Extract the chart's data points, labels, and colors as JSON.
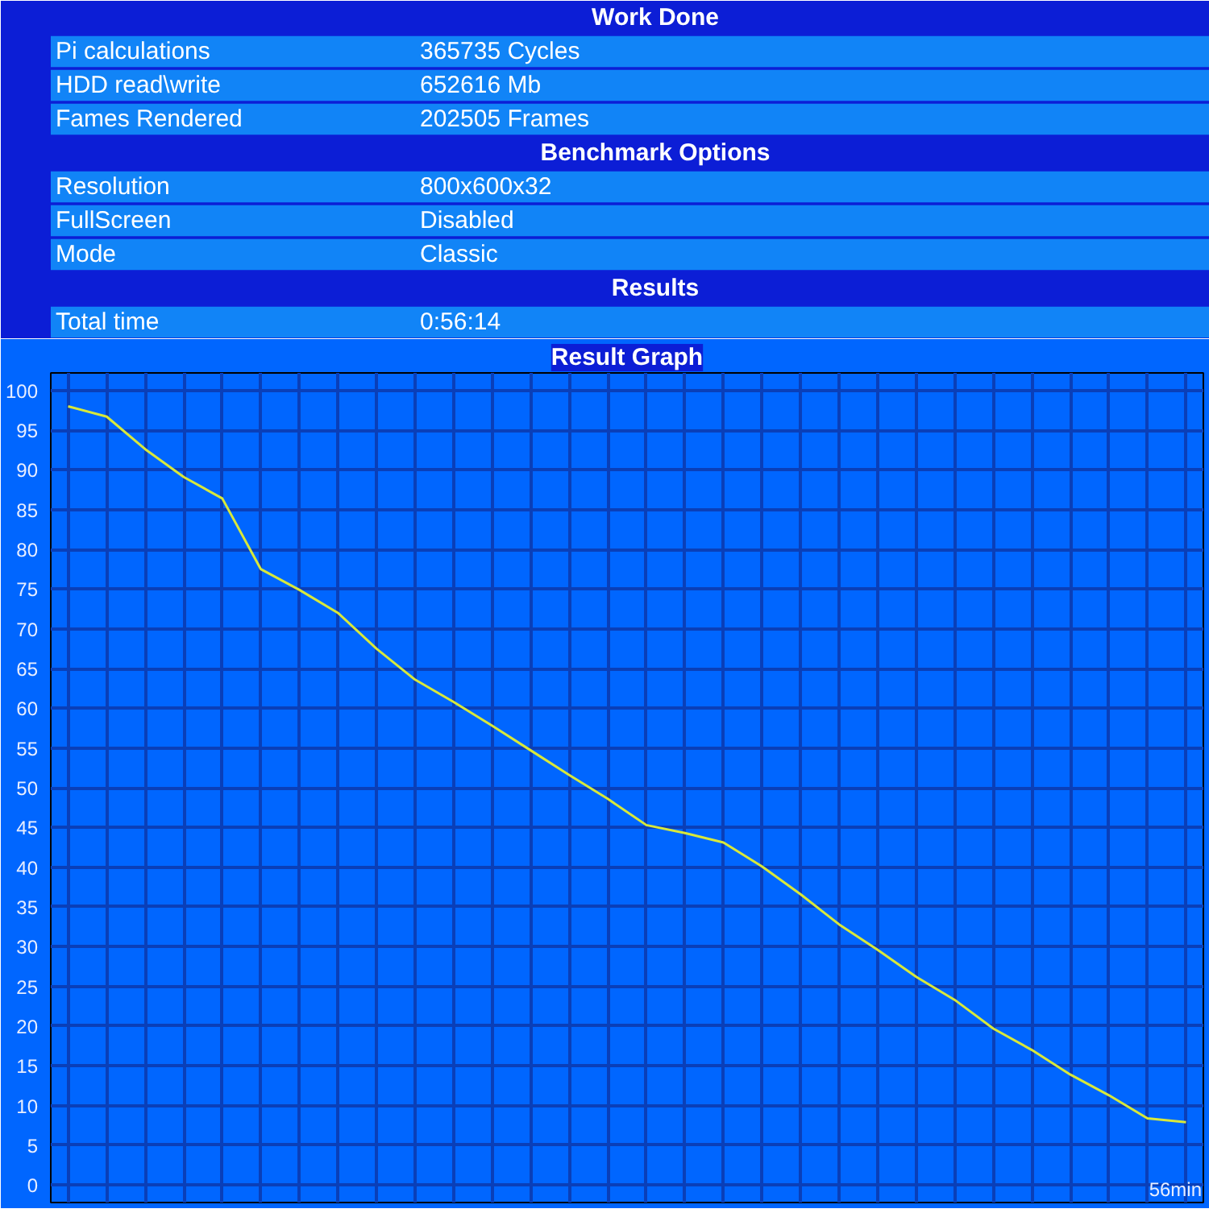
{
  "chart_data": {
    "type": "line",
    "title": "Result Graph",
    "grid": true,
    "marker": "none",
    "line_style": "solid",
    "annotations": [
      "Work Done",
      "Pi calculations",
      "365735 Cycles",
      "HDD read\\write",
      "652616 Mb",
      "Fames Rendered",
      "202505 Frames",
      "Benchmark Options",
      "Resolution",
      "800x600x32",
      "FullScreen",
      "Disabled",
      "Mode",
      "Classic",
      "Results",
      "Total time",
      "0:56:14",
      "56min"
    ],
    "ylim": [
      -2.2,
      102.2
    ],
    "yticks": [
      0,
      5,
      10,
      15,
      20,
      25,
      30,
      35,
      40,
      45,
      50,
      55,
      60,
      65,
      70,
      75,
      80,
      85,
      90,
      95,
      100
    ],
    "categories": [
      null,
      null,
      null,
      null,
      null,
      null,
      null,
      null,
      null,
      null,
      null,
      null,
      null,
      null,
      null,
      null,
      null,
      null,
      null,
      null,
      null,
      null,
      null,
      null,
      null,
      null,
      null,
      null,
      null,
      null
    ],
    "series": [
      {
        "color": "#d8e83a",
        "values": [
          98.0,
          96.7,
          92.6,
          89.1,
          86.4,
          77.5,
          74.9,
          72.0,
          67.5,
          63.6,
          60.8,
          57.8,
          54.7,
          51.6,
          48.6,
          45.3,
          44.3,
          43.1,
          40.1,
          36.6,
          32.8,
          29.6,
          26.2,
          23.3,
          19.7,
          17.0,
          13.9,
          11.3,
          8.4,
          7.9
        ]
      }
    ]
  }
}
